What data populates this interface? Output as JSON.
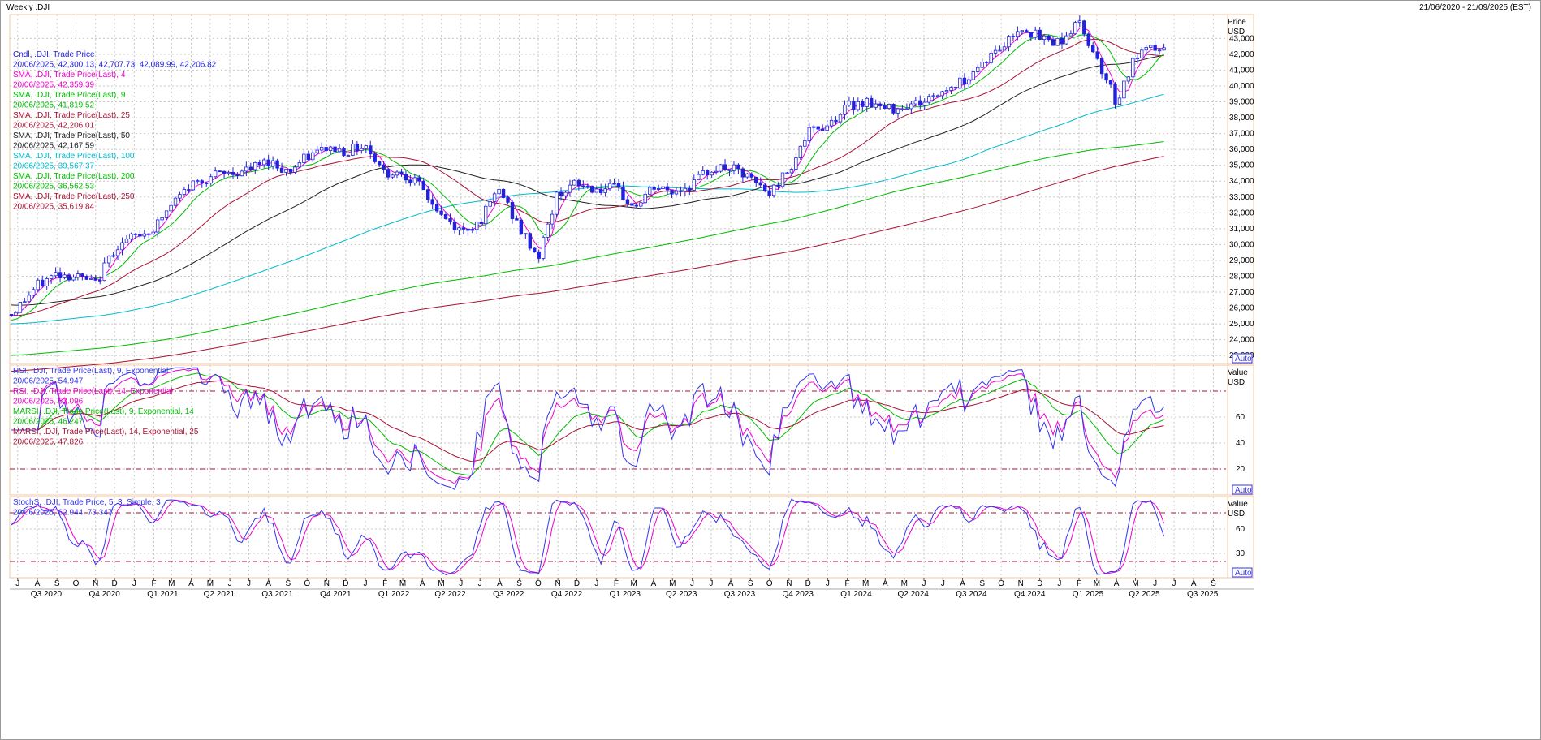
{
  "header": {
    "title": "Weekly .DJI",
    "range": "21/06/2020 - 21/09/2025 (EST)"
  },
  "colors": {
    "candle": "#2222dd",
    "sma4": "#ee00cc",
    "sma9": "#00bb00",
    "sma25": "#aa1133",
    "sma50": "#222222",
    "sma100": "#00bbcc",
    "sma200": "#00bb00",
    "sma250": "#aa1133",
    "rsi9": "#3333ee",
    "rsi14": "#ee00cc",
    "marsi9": "#00bb00",
    "marsi14": "#aa1133",
    "stochK": "#3333ee",
    "stochD": "#ee00cc",
    "panel_border": "#f0c8a0",
    "grid": "#c8c8c8"
  },
  "chart_data": [
    {
      "type": "candlestick",
      "panel": "price",
      "ylabel": "Price",
      "unit": "USD",
      "scale_label": "Auto",
      "ylim": [
        22500,
        44500
      ],
      "yticks": [
        "23,000",
        "24,000",
        "25,000",
        "26,000",
        "27,000",
        "28,000",
        "29,000",
        "30,000",
        "31,000",
        "32,000",
        "33,000",
        "34,000",
        "35,000",
        "36,000",
        "37,000",
        "38,000",
        "39,000",
        "40,000",
        "41,000",
        "42,000",
        "43,000"
      ],
      "x_start": "2020-06-21",
      "x_end": "2025-09-21",
      "last_date": "2025-06-20",
      "price_path": [
        [
          "2020-06-21",
          25600
        ],
        [
          "2020-08-01",
          27400
        ],
        [
          "2020-09-01",
          28200
        ],
        [
          "2020-10-01",
          28000
        ],
        [
          "2020-11-01",
          27500
        ],
        [
          "2020-12-01",
          29800
        ],
        [
          "2021-01-01",
          30500
        ],
        [
          "2021-02-01",
          31000
        ],
        [
          "2021-03-01",
          32500
        ],
        [
          "2021-04-01",
          33800
        ],
        [
          "2021-05-01",
          34300
        ],
        [
          "2021-06-01",
          34500
        ],
        [
          "2021-07-01",
          34700
        ],
        [
          "2021-08-01",
          35300
        ],
        [
          "2021-09-01",
          34600
        ],
        [
          "2021-10-01",
          35500
        ],
        [
          "2021-11-01",
          36100
        ],
        [
          "2021-12-01",
          35900
        ],
        [
          "2022-01-01",
          36300
        ],
        [
          "2022-02-01",
          34500
        ],
        [
          "2022-03-01",
          34600
        ],
        [
          "2022-04-01",
          33500
        ],
        [
          "2022-05-01",
          31800
        ],
        [
          "2022-06-01",
          30800
        ],
        [
          "2022-07-01",
          31500
        ],
        [
          "2022-08-01",
          33500
        ],
        [
          "2022-09-01",
          31000
        ],
        [
          "2022-10-01",
          29200
        ],
        [
          "2022-11-01",
          33300
        ],
        [
          "2022-12-01",
          33800
        ],
        [
          "2023-01-01",
          33500
        ],
        [
          "2023-02-01",
          33500
        ],
        [
          "2023-03-01",
          32300
        ],
        [
          "2023-04-01",
          33600
        ],
        [
          "2023-05-01",
          33300
        ],
        [
          "2023-06-01",
          33800
        ],
        [
          "2023-07-01",
          34800
        ],
        [
          "2023-08-01",
          34800
        ],
        [
          "2023-09-01",
          34100
        ],
        [
          "2023-10-01",
          33200
        ],
        [
          "2023-11-01",
          34800
        ],
        [
          "2023-12-01",
          37000
        ],
        [
          "2024-01-01",
          37600
        ],
        [
          "2024-02-01",
          38700
        ],
        [
          "2024-03-01",
          39100
        ],
        [
          "2024-04-01",
          38500
        ],
        [
          "2024-05-01",
          38800
        ],
        [
          "2024-06-01",
          39000
        ],
        [
          "2024-07-01",
          39700
        ],
        [
          "2024-08-01",
          40300
        ],
        [
          "2024-09-01",
          41500
        ],
        [
          "2024-10-01",
          42400
        ],
        [
          "2024-11-01",
          43800
        ],
        [
          "2024-12-01",
          43000
        ],
        [
          "2025-01-01",
          42800
        ],
        [
          "2025-02-01",
          44000
        ],
        [
          "2025-03-01",
          41800
        ],
        [
          "2025-04-01",
          39000
        ],
        [
          "2025-05-01",
          41800
        ],
        [
          "2025-06-01",
          42400
        ],
        [
          "2025-06-20",
          42206
        ]
      ],
      "indicators": [
        {
          "name": "Cndl, .DJI, Trade Price",
          "value": "20/06/2025, 42,300.13, 42,707.73, 42,089.99, 42,206.82",
          "color_key": "candle"
        },
        {
          "name": "SMA, .DJI, Trade Price(Last), 4",
          "value": "20/06/2025, 42,359.39",
          "color_key": "sma4"
        },
        {
          "name": "SMA, .DJI, Trade Price(Last), 9",
          "value": "20/06/2025, 41,819.52",
          "color_key": "sma9"
        },
        {
          "name": "SMA, .DJI, Trade Price(Last), 25",
          "value": "20/06/2025, 42,206.01",
          "color_key": "sma25"
        },
        {
          "name": "SMA, .DJI, Trade Price(Last), 50",
          "value": "20/06/2025, 42,167.59",
          "color_key": "sma50"
        },
        {
          "name": "SMA, .DJI, Trade Price(Last), 100",
          "value": "20/06/2025, 39,567.37",
          "color_key": "sma100"
        },
        {
          "name": "SMA, .DJI, Trade Price(Last), 200",
          "value": "20/06/2025, 36,562.53",
          "color_key": "sma200"
        },
        {
          "name": "SMA, .DJI, Trade Price(Last), 250",
          "value": "20/06/2025, 35,619.84",
          "color_key": "sma250"
        }
      ]
    },
    {
      "type": "line",
      "panel": "rsi",
      "ylabel": "Value",
      "unit": "USD",
      "scale_label": "Auto",
      "ylim": [
        0,
        100
      ],
      "yticks": [
        "20",
        "40",
        "60"
      ],
      "reference_lines": [
        20,
        80
      ],
      "indicators": [
        {
          "name": "RSI, .DJI, Trade Price(Last), 9, Exponential",
          "value": "20/06/2025, 54.947",
          "color_key": "rsi9"
        },
        {
          "name": "RSI, .DJI, Trade Price(Last), 14, Exponential",
          "value": "20/06/2025, 53.096",
          "color_key": "rsi14"
        },
        {
          "name": "MARSI, .DJI, Trade Price(Last), 9, Exponential, 14",
          "value": "20/06/2025, 46.247",
          "color_key": "marsi9"
        },
        {
          "name": "MARSI, .DJI, Trade Price(Last), 14, Exponential, 25",
          "value": "20/06/2025, 47.826",
          "color_key": "marsi14"
        }
      ]
    },
    {
      "type": "line",
      "panel": "stoch",
      "ylabel": "Value",
      "unit": "USD",
      "scale_label": "Auto",
      "ylim": [
        0,
        100
      ],
      "yticks": [
        "30",
        "60"
      ],
      "reference_lines": [
        20,
        80
      ],
      "indicators": [
        {
          "name": "StochS, .DJI, Trade Price, 5, 3, Simple, 3",
          "value": "20/06/2025, 62.944, 73.347",
          "color_key": "stochK"
        }
      ]
    }
  ],
  "x_axis": {
    "months": [
      [
        "2020-07-01",
        "J"
      ],
      [
        "2020-08-01",
        "A"
      ],
      [
        "2020-09-01",
        "S"
      ],
      [
        "2020-10-01",
        "O"
      ],
      [
        "2020-11-01",
        "N"
      ],
      [
        "2020-12-01",
        "D"
      ],
      [
        "2021-01-01",
        "J"
      ],
      [
        "2021-02-01",
        "F"
      ],
      [
        "2021-03-01",
        "M"
      ],
      [
        "2021-04-01",
        "A"
      ],
      [
        "2021-05-01",
        "M"
      ],
      [
        "2021-06-01",
        "J"
      ],
      [
        "2021-07-01",
        "J"
      ],
      [
        "2021-08-01",
        "A"
      ],
      [
        "2021-09-01",
        "S"
      ],
      [
        "2021-10-01",
        "O"
      ],
      [
        "2021-11-01",
        "N"
      ],
      [
        "2021-12-01",
        "D"
      ],
      [
        "2022-01-01",
        "J"
      ],
      [
        "2022-02-01",
        "F"
      ],
      [
        "2022-03-01",
        "M"
      ],
      [
        "2022-04-01",
        "A"
      ],
      [
        "2022-05-01",
        "M"
      ],
      [
        "2022-06-01",
        "J"
      ],
      [
        "2022-07-01",
        "J"
      ],
      [
        "2022-08-01",
        "A"
      ],
      [
        "2022-09-01",
        "S"
      ],
      [
        "2022-10-01",
        "O"
      ],
      [
        "2022-11-01",
        "N"
      ],
      [
        "2022-12-01",
        "D"
      ],
      [
        "2023-01-01",
        "J"
      ],
      [
        "2023-02-01",
        "F"
      ],
      [
        "2023-03-01",
        "M"
      ],
      [
        "2023-04-01",
        "A"
      ],
      [
        "2023-05-01",
        "M"
      ],
      [
        "2023-06-01",
        "J"
      ],
      [
        "2023-07-01",
        "J"
      ],
      [
        "2023-08-01",
        "A"
      ],
      [
        "2023-09-01",
        "S"
      ],
      [
        "2023-10-01",
        "O"
      ],
      [
        "2023-11-01",
        "N"
      ],
      [
        "2023-12-01",
        "D"
      ],
      [
        "2024-01-01",
        "J"
      ],
      [
        "2024-02-01",
        "F"
      ],
      [
        "2024-03-01",
        "M"
      ],
      [
        "2024-04-01",
        "A"
      ],
      [
        "2024-05-01",
        "M"
      ],
      [
        "2024-06-01",
        "J"
      ],
      [
        "2024-07-01",
        "J"
      ],
      [
        "2024-08-01",
        "A"
      ],
      [
        "2024-09-01",
        "S"
      ],
      [
        "2024-10-01",
        "O"
      ],
      [
        "2024-11-01",
        "N"
      ],
      [
        "2024-12-01",
        "D"
      ],
      [
        "2025-01-01",
        "J"
      ],
      [
        "2025-02-01",
        "F"
      ],
      [
        "2025-03-01",
        "M"
      ],
      [
        "2025-04-01",
        "A"
      ],
      [
        "2025-05-01",
        "M"
      ],
      [
        "2025-06-01",
        "J"
      ],
      [
        "2025-07-01",
        "J"
      ],
      [
        "2025-08-01",
        "A"
      ],
      [
        "2025-09-01",
        "S"
      ]
    ],
    "quarters": [
      [
        "2020-08-15",
        "Q3 2020"
      ],
      [
        "2020-11-15",
        "Q4 2020"
      ],
      [
        "2021-02-15",
        "Q1 2021"
      ],
      [
        "2021-05-15",
        "Q2 2021"
      ],
      [
        "2021-08-15",
        "Q3 2021"
      ],
      [
        "2021-11-15",
        "Q4 2021"
      ],
      [
        "2022-02-15",
        "Q1 2022"
      ],
      [
        "2022-05-15",
        "Q2 2022"
      ],
      [
        "2022-08-15",
        "Q3 2022"
      ],
      [
        "2022-11-15",
        "Q4 2022"
      ],
      [
        "2023-02-15",
        "Q1 2023"
      ],
      [
        "2023-05-15",
        "Q2 2023"
      ],
      [
        "2023-08-15",
        "Q3 2023"
      ],
      [
        "2023-11-15",
        "Q4 2023"
      ],
      [
        "2024-02-15",
        "Q1 2024"
      ],
      [
        "2024-05-15",
        "Q2 2024"
      ],
      [
        "2024-08-15",
        "Q3 2024"
      ],
      [
        "2024-11-15",
        "Q4 2024"
      ],
      [
        "2025-02-15",
        "Q1 2025"
      ],
      [
        "2025-05-15",
        "Q2 2025"
      ],
      [
        "2025-08-15",
        "Q3 2025"
      ]
    ]
  }
}
